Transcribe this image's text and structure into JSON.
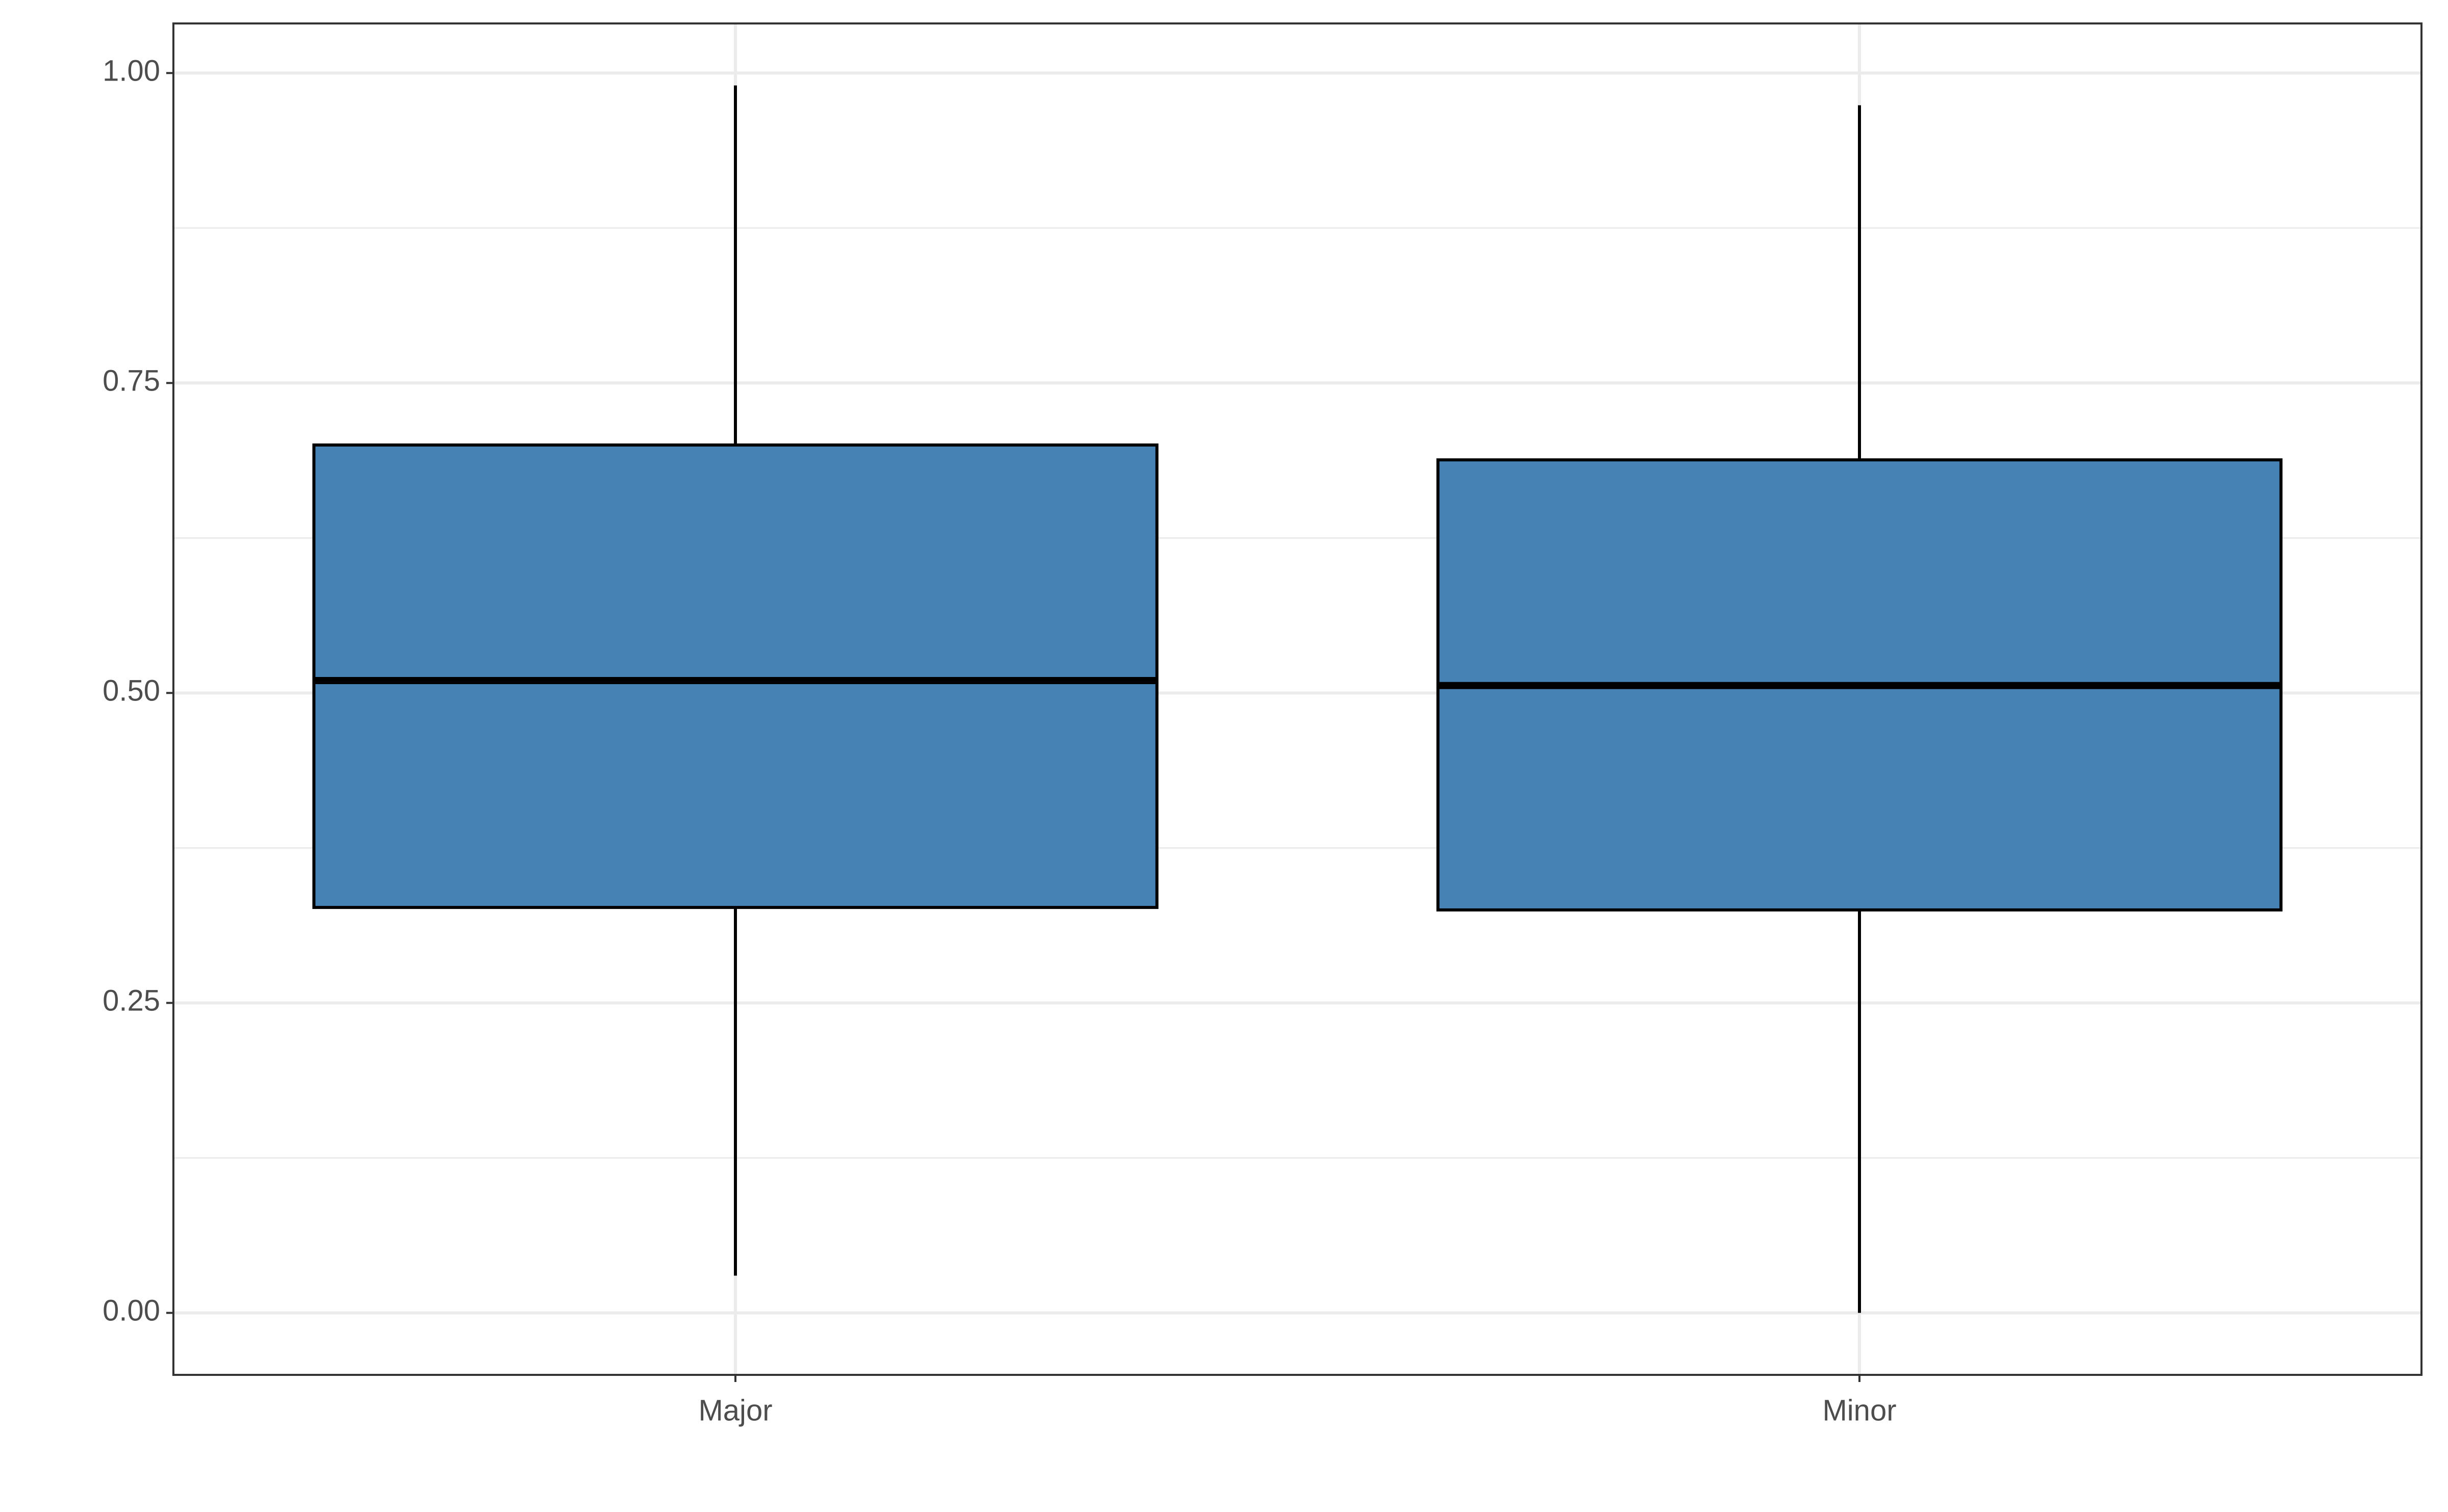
{
  "chart_data": {
    "type": "box",
    "categories": [
      "Major",
      "Minor"
    ],
    "min": [
      0.03,
      0.0
    ],
    "q1": [
      0.327,
      0.325
    ],
    "median": [
      0.51,
      0.506
    ],
    "q3": [
      0.7,
      0.688
    ],
    "max": [
      0.99,
      0.974
    ],
    "color": "#4682b4",
    "ylim": [
      -0.05,
      1.04
    ],
    "yticks": [
      {
        "value": 0,
        "label": "0.00"
      },
      {
        "value": 0.25,
        "label": "0.25"
      },
      {
        "value": 0.5,
        "label": "0.50"
      },
      {
        "value": 0.75,
        "label": "0.75"
      },
      {
        "value": 1,
        "label": "1.00"
      }
    ],
    "yminorticks": [
      0.125,
      0.375,
      0.625,
      0.875
    ],
    "grid": true
  }
}
